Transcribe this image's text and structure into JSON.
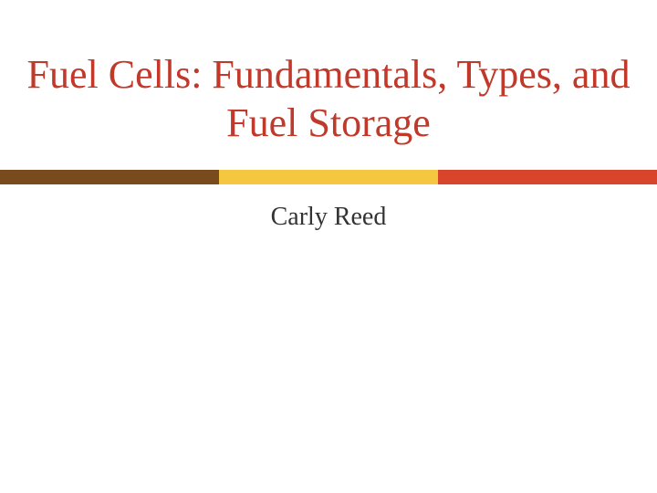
{
  "slide": {
    "title": "Fuel Cells: Fundamentals, Types, and Fuel Storage",
    "subtitle": "Carly Reed",
    "title_color": "#c0392b",
    "title_fontsize": 44,
    "subtitle_color": "#333333",
    "subtitle_fontsize": 28,
    "background_color": "#ffffff",
    "divider": {
      "height": 16,
      "segments": [
        {
          "color": "#7a4a1f"
        },
        {
          "color": "#f5c63f"
        },
        {
          "color": "#d9452a"
        }
      ]
    }
  }
}
